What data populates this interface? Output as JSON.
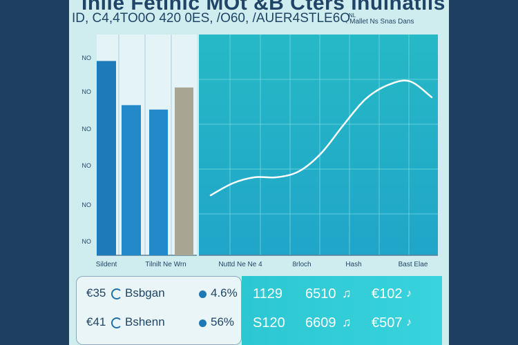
{
  "header": {
    "title": "Iniie Fetinic MOt &B Cters Inulnatils",
    "subtitle": "ID, C4,4TO0O 420 0ES, /O60, /AUER4STLE6O",
    "note": "‹ Mallet Ns Snas Dans",
    "note_small": "NL"
  },
  "chart_data": [
    {
      "type": "bar",
      "categories": [
        "Sildent",
        "Tilnilt Ne Wrn"
      ],
      "ytick_labels": [
        "NO",
        "NO",
        "NO",
        "NO",
        "NO",
        "NO"
      ],
      "series": [
        {
          "values": [
            88,
            66
          ]
        },
        {
          "values": [
            68,
            76
          ]
        }
      ],
      "ylim": [
        0,
        100
      ],
      "colors": [
        "#1e7ab8",
        "#2389c9",
        "#a9a593"
      ],
      "grid": true
    },
    {
      "type": "line",
      "x": [
        0,
        1,
        2,
        3,
        4,
        5,
        6,
        7,
        8,
        9,
        10
      ],
      "values": [
        30,
        36,
        39,
        39,
        42,
        51,
        65,
        78,
        85,
        87,
        79
      ],
      "ylim": [
        0,
        100
      ],
      "tick_labels": [
        "Nuttd Ne Ne 4",
        "8rloch",
        "Hash",
        "Bast Elae"
      ],
      "line_color": "#ffffff",
      "background": [
        "#26b9c6",
        "#20a5c8"
      ],
      "grid": true
    }
  ],
  "stats": [
    {
      "price": "€35",
      "name": "Bsbgan",
      "percent": "4.6%"
    },
    {
      "price": "€41",
      "name": "Bshenn",
      "percent": "56%"
    }
  ],
  "panel": [
    {
      "v1": "1129",
      "v2": "6510",
      "v2_icon": "♫",
      "v3": "€102",
      "v3_icon": "♪"
    },
    {
      "v1": "S120",
      "v2": "6609",
      "v2_icon": "♫",
      "v3": "€507",
      "v3_icon": "♪"
    }
  ],
  "colors": {
    "accent": "#26b9c6",
    "text": "#1f4466",
    "background": "#1e3f5f"
  }
}
